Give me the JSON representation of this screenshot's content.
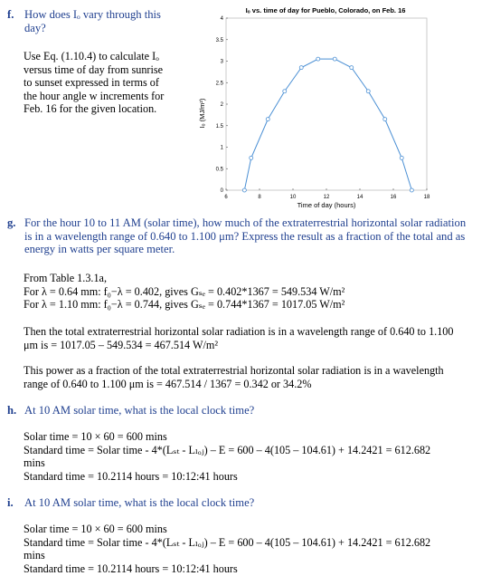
{
  "part_f": {
    "label": "f.",
    "question_line1": "How does Iₒ vary through this",
    "question_line2": "day?",
    "instruction_lines": [
      "Use Eq. (1.10.4) to calculate Iₒ",
      "versus time of day from sunrise",
      "to sunset expressed in terms of",
      "the hour angle w increments for",
      "Feb. 16 for the given location."
    ]
  },
  "chart_data": {
    "type": "line",
    "title": "Iₒ vs. time of day for Pueblo, Colorado, on Feb. 16",
    "xlabel": "Time of day (hours)",
    "ylabel": "Iₒ (MJ/m²)",
    "xlim": [
      6,
      18
    ],
    "ylim": [
      0,
      4
    ],
    "xticks": [
      "6",
      "8",
      "10",
      "12",
      "14",
      "16",
      "18"
    ],
    "yticks": [
      "0",
      "0.5",
      "1",
      "1.5",
      "2",
      "2.5",
      "3",
      "3.5",
      "4"
    ],
    "grid": false,
    "series": [
      {
        "color": "#4a8fd4",
        "x": [
          7.1,
          7.5,
          8.5,
          9.5,
          10.5,
          11.5,
          12.5,
          13.5,
          14.5,
          15.5,
          16.5,
          17.1
        ],
        "y": [
          0.0,
          0.75,
          1.65,
          2.3,
          2.85,
          3.05,
          3.05,
          2.85,
          2.3,
          1.65,
          0.75,
          0.0
        ]
      }
    ]
  },
  "part_g": {
    "label": "g.",
    "question_lines": [
      "For the hour 10 to 11 AM (solar time), how much of the extraterrestrial horizontal solar radiation",
      "is in a wavelength range of 0.640 to 1.100 μm? Express the result as a fraction of the total and as",
      "energy in watts per square meter."
    ],
    "from_table": "From Table 1.3.1a,",
    "line1": "For λ = 0.64 mm: f₀−λ = 0.402, gives Gₛₑ = 0.402*1367 = 549.534 W/m²",
    "line2": "For λ = 1.10 mm: f₀−λ = 0.744, gives Gₛₑ = 0.744*1367 = 1017.05 W/m²",
    "then_lines": [
      "Then the total extraterrestrial horizontal solar radiation is in a wavelength range of 0.640 to 1.100",
      "μm is = 1017.05 – 549.534 = 467.514 W/m²"
    ],
    "power_lines": [
      "This power as a fraction of the total extraterrestrial horizontal solar radiation is in a wavelength",
      "range of 0.640 to 1.100 μm is = 467.514 / 1367 = 0.342 or 34.2%"
    ]
  },
  "part_h": {
    "label": "h.",
    "question": "At 10 AM solar time, what is the local clock time?",
    "solar_time": "Solar time = 10 × 60 = 600 mins",
    "standard_time": "Standard time = Solar time - 4*(Lₛₜ - Lₗₒⱼ) – E = 600 – 4(105 – 104.61) + 14.2421 = 612.682",
    "mins": "mins",
    "result": "Standard time = 10.2114 hours = 10:12:41 hours"
  },
  "part_i": {
    "label": "i.",
    "question": "At 10 AM solar time, what is the local clock time?",
    "solar_time": "Solar time = 10 × 60 = 600 mins",
    "standard_time": "Standard time = Solar time - 4*(Lₛₜ - Lₗₒⱼ) – E = 600 – 4(105 – 104.61) + 14.2421 = 612.682",
    "mins": "mins",
    "result": "Standard time = 10.2114 hours = 10:12:41 hours"
  }
}
